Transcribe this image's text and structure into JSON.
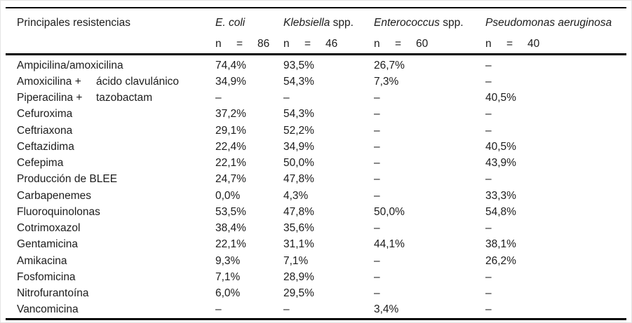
{
  "table": {
    "title_col": "Principales resistencias",
    "n_label": "n",
    "eq_sign": "=",
    "dash": "–",
    "columns": [
      {
        "name_italic": "E. coli",
        "name_regular": "",
        "n": "86"
      },
      {
        "name_italic": "Klebsiella",
        "name_regular": " spp.",
        "n": "46"
      },
      {
        "name_italic": "Enterococcus",
        "name_regular": " spp.",
        "n": "60"
      },
      {
        "name_italic": "Pseudomonas aeruginosa",
        "name_regular": "",
        "n": "40"
      }
    ],
    "rows": [
      {
        "label": "Ampicilina/amoxicilina",
        "label2": "",
        "values": [
          "74,4%",
          "93,5%",
          "26,7%",
          "–"
        ]
      },
      {
        "label": "Amoxicilina +",
        "label2": "ácido clavulánico",
        "values": [
          "34,9%",
          "54,3%",
          "7,3%",
          "–"
        ]
      },
      {
        "label": "Piperacilina +",
        "label2": "tazobactam",
        "values": [
          "–",
          "–",
          "–",
          "40,5%"
        ]
      },
      {
        "label": "Cefuroxima",
        "label2": "",
        "values": [
          "37,2%",
          "54,3%",
          "–",
          "–"
        ]
      },
      {
        "label": "Ceftriaxona",
        "label2": "",
        "values": [
          "29,1%",
          "52,2%",
          "–",
          "–"
        ]
      },
      {
        "label": "Ceftazidima",
        "label2": "",
        "values": [
          "22,4%",
          "34,9%",
          "–",
          "40,5%"
        ]
      },
      {
        "label": "Cefepima",
        "label2": "",
        "values": [
          "22,1%",
          "50,0%",
          "–",
          "43,9%"
        ]
      },
      {
        "label": "Producción de BLEE",
        "label2": "",
        "values": [
          "24,7%",
          "47,8%",
          "–",
          "–"
        ]
      },
      {
        "label": "Carbapenemes",
        "label2": "",
        "values": [
          "0,0%",
          "4,3%",
          "–",
          "33,3%"
        ]
      },
      {
        "label": "Fluoroquinolonas",
        "label2": "",
        "values": [
          "53,5%",
          "47,8%",
          "50,0%",
          "54,8%"
        ]
      },
      {
        "label": "Cotrimoxazol",
        "label2": "",
        "values": [
          "38,4%",
          "35,6%",
          "–",
          "–"
        ]
      },
      {
        "label": "Gentamicina",
        "label2": "",
        "values": [
          "22,1%",
          "31,1%",
          "44,1%",
          "38,1%"
        ]
      },
      {
        "label": "Amikacina",
        "label2": "",
        "values": [
          "9,3%",
          "7,1%",
          "–",
          "26,2%"
        ]
      },
      {
        "label": "Fosfomicina",
        "label2": "",
        "values": [
          "7,1%",
          "28,9%",
          "–",
          "–"
        ]
      },
      {
        "label": "Nitrofurantoína",
        "label2": "",
        "values": [
          "6,0%",
          "29,5%",
          "–",
          "–"
        ]
      },
      {
        "label": "Vancomicina",
        "label2": "",
        "values": [
          "–",
          "–",
          "3,4%",
          "–"
        ]
      }
    ]
  },
  "colors": {
    "rule": "#000000",
    "text": "#1c1c1c",
    "frame": "#e4e4e4",
    "background": "#ffffff"
  }
}
